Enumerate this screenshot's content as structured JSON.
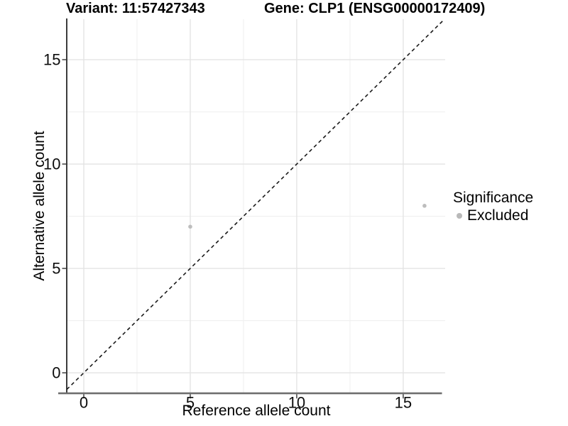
{
  "chart_data": {
    "type": "scatter",
    "title_left": "Variant: 11:57427343",
    "title_right": "Gene: CLP1 (ENSG00000172409)",
    "xlabel": "Reference allele count",
    "ylabel": "Alternative allele count",
    "xlim": [
      -0.8,
      16.97
    ],
    "ylim": [
      -0.95,
      16.94
    ],
    "x_ticks": [
      0,
      5,
      10,
      15
    ],
    "y_ticks": [
      0,
      5,
      10,
      15
    ],
    "x_minor_gridlines": [
      2.5,
      7.5,
      12.5
    ],
    "y_minor_gridlines": [
      2.5,
      7.5,
      12.5
    ],
    "grid": true,
    "background": "#ffffff",
    "legend": {
      "title": "Significance",
      "position": "right",
      "items": [
        {
          "label": "Excluded",
          "color": "#b9b9b9",
          "marker": "circle"
        }
      ]
    },
    "series": [
      {
        "name": "Excluded",
        "color": "#bdbdbd",
        "marker_radius": 2.8,
        "points": [
          {
            "x": 5,
            "y": 7
          },
          {
            "x": 16,
            "y": 8
          }
        ]
      }
    ],
    "reference_line": {
      "type": "identity y=x",
      "style": "dashed",
      "color": "#1a1a1a",
      "from": [
        -0.8,
        -0.8
      ],
      "to": [
        16.94,
        16.94
      ]
    },
    "axis_colors": {
      "left_axis_line": "#1a1a1a",
      "bottom_axis_line": "#6f6f6f",
      "tick_mark": "#333333",
      "tick_label": "#0d0d0d",
      "grid_major": "#e4e4e4",
      "grid_minor": "#f0f0f0"
    }
  }
}
